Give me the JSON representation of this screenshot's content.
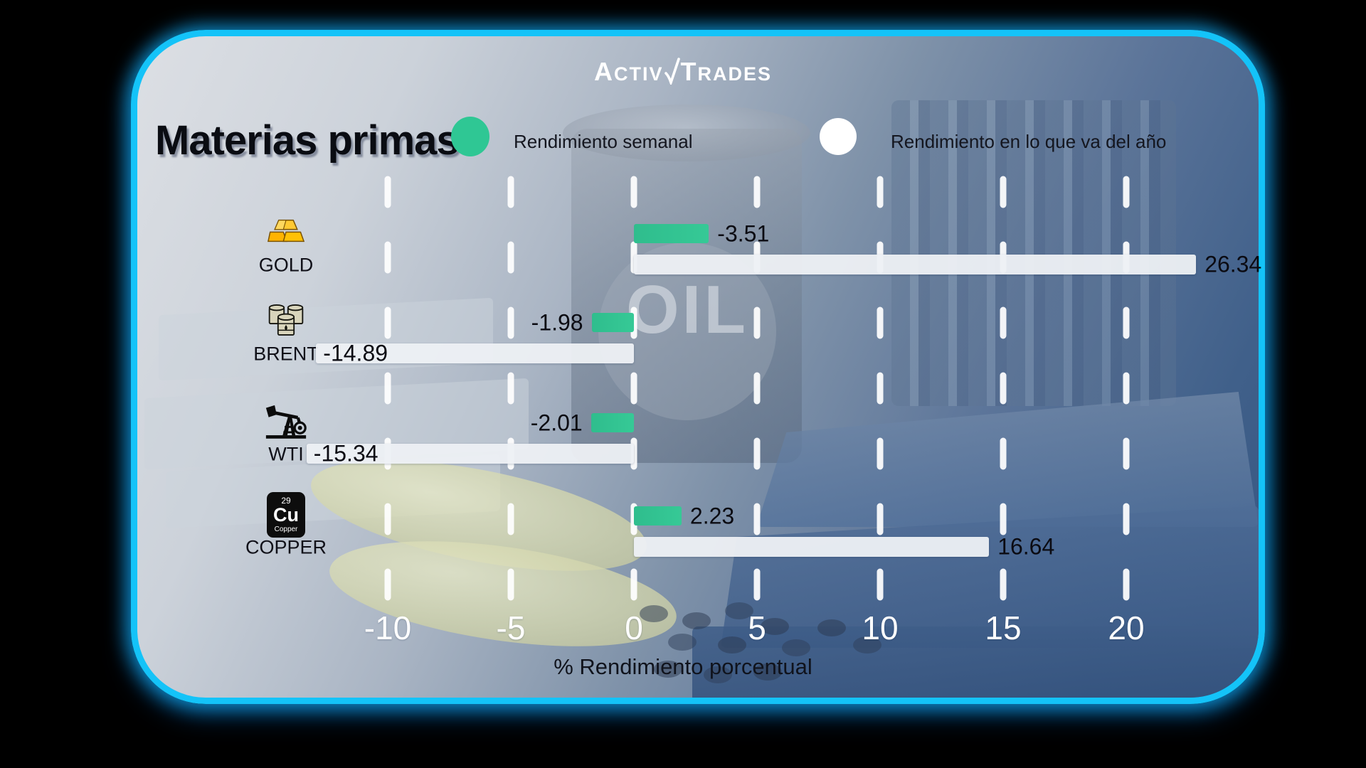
{
  "brand": {
    "logo_left": "Activ",
    "logo_right": "Trades"
  },
  "header": {
    "title": "Materias primas"
  },
  "legend": [
    {
      "label": "Rendimiento semanal",
      "color": "#2fc794",
      "marker": "green-circle"
    },
    {
      "label": "Rendimiento en lo que va del año",
      "color": "#ffffff",
      "marker": "white-circle"
    }
  ],
  "background_label": "OIL",
  "copper_tile": {
    "atomic_number": "29",
    "symbol": "Cu",
    "name": "Copper"
  },
  "chart_data": {
    "type": "bar",
    "orientation": "horizontal",
    "title": "Materias primas",
    "xlabel": "% Rendimiento porcentual",
    "x_ticks": [
      -10,
      -5,
      0,
      5,
      10,
      15,
      20
    ],
    "xlim": [
      -16,
      24
    ],
    "grid": "dashed-white-vertical",
    "legend_position": "top",
    "categories": [
      "GOLD",
      "BRENT",
      "WTI",
      "COPPER"
    ],
    "series": [
      {
        "name": "Rendimiento semanal",
        "color": "#2fc794",
        "values": [
          -3.51,
          -1.98,
          -2.01,
          2.23
        ]
      },
      {
        "name": "Rendimiento en lo que va del año",
        "color": "#eef1f5",
        "values": [
          26.34,
          -14.89,
          -15.34,
          16.64
        ]
      }
    ],
    "rows": [
      {
        "category": "GOLD",
        "icon": "gold-ingots-icon",
        "weekly": {
          "value": -3.51,
          "label": "-3.51",
          "drawn_direction": "right",
          "label_position": "outside-right"
        },
        "ytd": {
          "value": 26.34,
          "label": "26.34",
          "drawn_direction": "right",
          "label_position": "outside-right"
        }
      },
      {
        "category": "BRENT",
        "icon": "oil-barrels-icon",
        "weekly": {
          "value": -1.98,
          "label": "-1.98",
          "drawn_direction": "left",
          "label_position": "outside-left"
        },
        "ytd": {
          "value": -14.89,
          "label": "-14.89",
          "drawn_direction": "left",
          "label_position": "inside-left"
        }
      },
      {
        "category": "WTI",
        "icon": "oil-pumpjack-icon",
        "weekly": {
          "value": -2.01,
          "label": "-2.01",
          "drawn_direction": "left",
          "label_position": "outside-left"
        },
        "ytd": {
          "value": -15.34,
          "label": "-15.34",
          "drawn_direction": "left",
          "label_position": "inside-left"
        }
      },
      {
        "category": "COPPER",
        "icon": "copper-element-icon",
        "weekly": {
          "value": 2.23,
          "label": "2.23",
          "drawn_direction": "right",
          "label_position": "outside-right"
        },
        "ytd": {
          "value": 16.64,
          "label": "16.64",
          "drawn_direction": "right",
          "label_position": "outside-right"
        }
      }
    ]
  }
}
